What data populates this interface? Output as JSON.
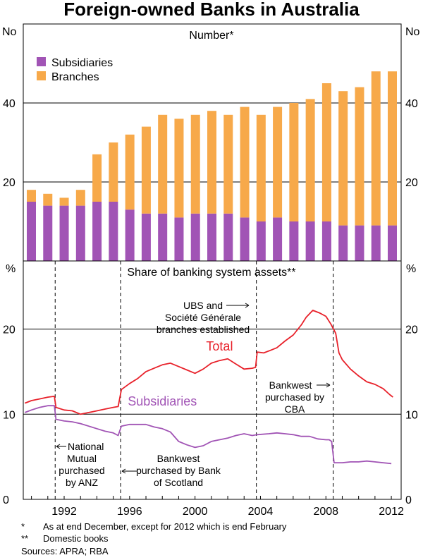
{
  "title": "Foreign-owned Banks in Australia",
  "chart_data": [
    {
      "type": "bar",
      "stacked": true,
      "panel_title": "Number*",
      "ylabel_left": "No",
      "ylabel_right": "No",
      "ylim": [
        0,
        60
      ],
      "yticks": [
        20,
        40
      ],
      "categories": [
        "1990",
        "1991",
        "1992",
        "1993",
        "1994",
        "1995",
        "1996",
        "1997",
        "1998",
        "1999",
        "2000",
        "2001",
        "2002",
        "2003",
        "2004",
        "2005",
        "2006",
        "2007",
        "2008",
        "2009",
        "2010",
        "2011",
        "2012"
      ],
      "series": [
        {
          "name": "Subsidiaries",
          "color": "#a154b5",
          "values": [
            15,
            14,
            14,
            14,
            15,
            15,
            13,
            12,
            12,
            11,
            12,
            12,
            12,
            11,
            10,
            11,
            10,
            10,
            10,
            9,
            9,
            9,
            9
          ]
        },
        {
          "name": "Branches",
          "color": "#f7a94a",
          "values": [
            3,
            3,
            2,
            4,
            12,
            15,
            19,
            22,
            25,
            25,
            25,
            26,
            25,
            28,
            27,
            28,
            30,
            31,
            35,
            34,
            35,
            39,
            39
          ]
        }
      ],
      "legend": [
        "Subsidiaries",
        "Branches"
      ],
      "legend_position": "top-left"
    },
    {
      "type": "line",
      "panel_title": "Share of banking system assets**",
      "ylabel_left": "%",
      "ylabel_right": "%",
      "ylim": [
        0,
        28
      ],
      "yticks": [
        0,
        10,
        20
      ],
      "xlim": [
        1989.5,
        2012.6
      ],
      "xticks": [
        "1992",
        "1996",
        "2000",
        "2004",
        "2008",
        "2012"
      ],
      "series": [
        {
          "name": "Total",
          "color": "#e8212a",
          "points": [
            [
              1989.6,
              11.3
            ],
            [
              1990.0,
              11.6
            ],
            [
              1990.5,
              11.8
            ],
            [
              1991.0,
              12.0
            ],
            [
              1991.4,
              12.1
            ],
            [
              1991.5,
              10.8
            ],
            [
              1992.0,
              10.5
            ],
            [
              1992.5,
              10.4
            ],
            [
              1993.0,
              10.0
            ],
            [
              1993.5,
              10.2
            ],
            [
              1994.0,
              10.4
            ],
            [
              1994.5,
              10.6
            ],
            [
              1995.0,
              10.8
            ],
            [
              1995.3,
              10.9
            ],
            [
              1995.5,
              12.9
            ],
            [
              1996.0,
              13.6
            ],
            [
              1996.5,
              14.2
            ],
            [
              1997.0,
              15.0
            ],
            [
              1997.5,
              15.4
            ],
            [
              1998.0,
              15.8
            ],
            [
              1998.5,
              16.0
            ],
            [
              1999.0,
              15.6
            ],
            [
              1999.5,
              15.2
            ],
            [
              2000.0,
              14.8
            ],
            [
              2000.5,
              15.3
            ],
            [
              2001.0,
              16.0
            ],
            [
              2001.5,
              16.3
            ],
            [
              2002.0,
              16.5
            ],
            [
              2002.5,
              15.9
            ],
            [
              2003.0,
              15.3
            ],
            [
              2003.5,
              15.4
            ],
            [
              2003.7,
              15.5
            ],
            [
              2003.8,
              17.3
            ],
            [
              2004.2,
              17.2
            ],
            [
              2004.6,
              17.5
            ],
            [
              2005.0,
              17.8
            ],
            [
              2005.5,
              18.6
            ],
            [
              2006.0,
              19.3
            ],
            [
              2006.5,
              20.5
            ],
            [
              2006.8,
              21.4
            ],
            [
              2007.2,
              22.2
            ],
            [
              2007.6,
              21.9
            ],
            [
              2008.0,
              21.5
            ],
            [
              2008.3,
              20.6
            ],
            [
              2008.6,
              19.5
            ],
            [
              2008.8,
              17.2
            ],
            [
              2009.0,
              16.4
            ],
            [
              2009.5,
              15.3
            ],
            [
              2010.0,
              14.5
            ],
            [
              2010.5,
              13.8
            ],
            [
              2011.0,
              13.5
            ],
            [
              2011.5,
              13.0
            ],
            [
              2011.9,
              12.3
            ],
            [
              2012.1,
              12.0
            ]
          ]
        },
        {
          "name": "Subsidiaries",
          "color": "#a154b5",
          "points": [
            [
              1989.6,
              10.2
            ],
            [
              1990.0,
              10.5
            ],
            [
              1990.5,
              10.8
            ],
            [
              1991.0,
              11.0
            ],
            [
              1991.4,
              11.0
            ],
            [
              1991.5,
              9.4
            ],
            [
              1992.0,
              9.2
            ],
            [
              1992.5,
              9.1
            ],
            [
              1993.0,
              8.9
            ],
            [
              1993.5,
              8.6
            ],
            [
              1994.0,
              8.3
            ],
            [
              1994.5,
              8.0
            ],
            [
              1995.0,
              7.8
            ],
            [
              1995.3,
              7.5
            ],
            [
              1995.5,
              8.6
            ],
            [
              1996.0,
              8.8
            ],
            [
              1996.5,
              8.8
            ],
            [
              1997.0,
              8.8
            ],
            [
              1997.5,
              8.5
            ],
            [
              1998.0,
              8.3
            ],
            [
              1998.5,
              7.9
            ],
            [
              1999.0,
              6.8
            ],
            [
              1999.5,
              6.4
            ],
            [
              2000.0,
              6.1
            ],
            [
              2000.5,
              6.3
            ],
            [
              2001.0,
              6.8
            ],
            [
              2001.5,
              7.0
            ],
            [
              2002.0,
              7.2
            ],
            [
              2002.5,
              7.5
            ],
            [
              2003.0,
              7.7
            ],
            [
              2003.5,
              7.5
            ],
            [
              2003.8,
              7.6
            ],
            [
              2004.5,
              7.7
            ],
            [
              2005.0,
              7.8
            ],
            [
              2005.5,
              7.7
            ],
            [
              2006.0,
              7.6
            ],
            [
              2006.5,
              7.4
            ],
            [
              2007.0,
              7.4
            ],
            [
              2007.5,
              7.1
            ],
            [
              2008.0,
              7.0
            ],
            [
              2008.2,
              7.0
            ],
            [
              2008.35,
              6.8
            ],
            [
              2008.5,
              4.3
            ],
            [
              2009.0,
              4.3
            ],
            [
              2009.5,
              4.4
            ],
            [
              2010.0,
              4.4
            ],
            [
              2010.5,
              4.5
            ],
            [
              2011.0,
              4.4
            ],
            [
              2011.5,
              4.3
            ],
            [
              2012.0,
              4.2
            ]
          ]
        }
      ],
      "series_labels": [
        {
          "text": "Total",
          "x": 2001.5,
          "y": 17.5,
          "color": "#e8212a"
        },
        {
          "text": "Subsidiaries",
          "x": 1998.0,
          "y": 11.0,
          "color": "#a154b5"
        }
      ],
      "events": [
        {
          "x": 1991.45,
          "lines": [
            "National",
            "Mutual",
            "purchased",
            "by ANZ"
          ]
        },
        {
          "x": 1995.45,
          "lines": [
            "Bankwest",
            "purchased by Bank",
            "of Scotland"
          ]
        },
        {
          "x": 2003.75,
          "lines": [
            "UBS and",
            "Société Générale",
            "branches established"
          ]
        },
        {
          "x": 2008.45,
          "lines": [
            "Bankwest",
            "purchased by",
            "CBA"
          ]
        }
      ]
    }
  ],
  "footnotes": {
    "star_mark": "*",
    "star_text": "As at end December, except for 2012 which is end February",
    "dstar_mark": "**",
    "dstar_text": "Domestic books",
    "sources": "Sources: APRA; RBA"
  }
}
